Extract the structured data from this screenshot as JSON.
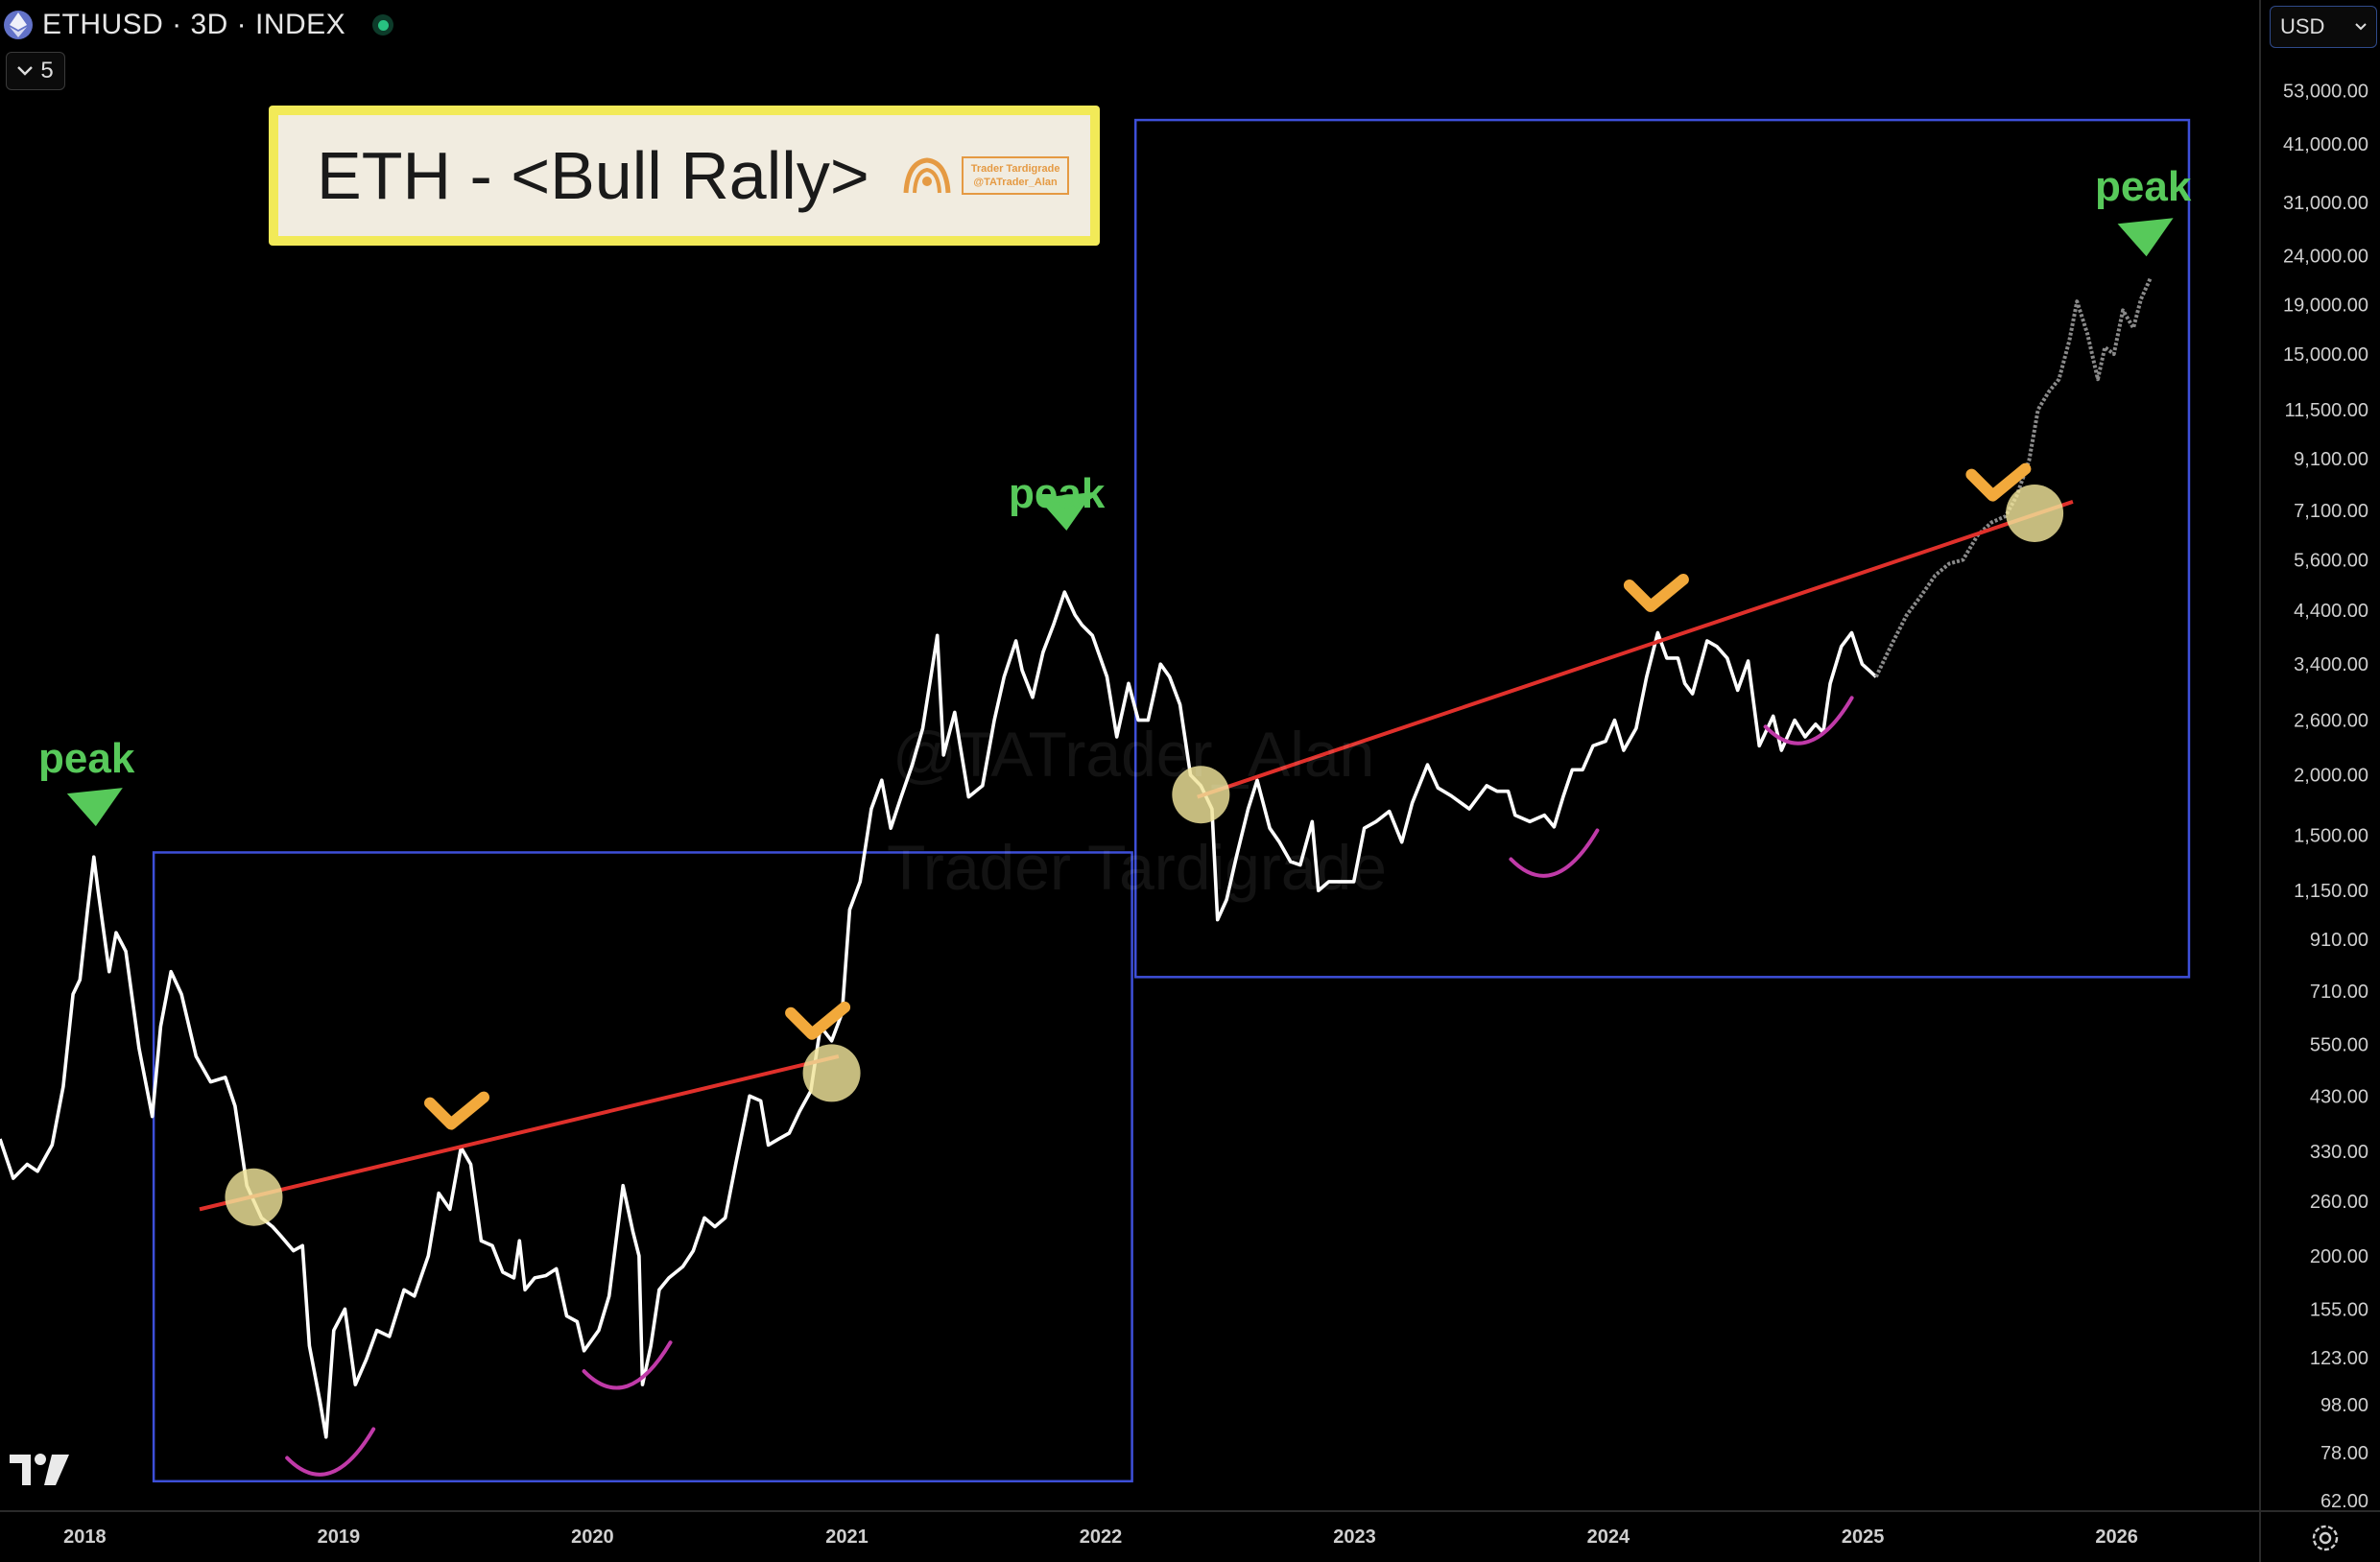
{
  "header": {
    "symbol": "ETHUSD · 3D · INDEX",
    "icon": "ethereum-icon",
    "status_icon": "market-status-dot",
    "collapse_count": "5"
  },
  "currency": {
    "label": "USD"
  },
  "banner": {
    "title": "ETH - <Bull Rally>",
    "badge_text_1": "Trader Tardigrade",
    "badge_text_2": "@TATrader_Alan"
  },
  "watermark": {
    "line1": "@TATrader_Alan",
    "line2": "Trader Tardigrade"
  },
  "logo": "tradingview-logo",
  "colors": {
    "background": "#000000",
    "price_line": "#ffffff",
    "projection": "#8a8a8a",
    "box": "#3d4fd8",
    "trendline": "#e0302b",
    "peak": "#57c95a",
    "check": "#f2a93b",
    "circle": "#f0e49a",
    "arc": "#c03aa8",
    "axis_text": "#cfcfcf"
  },
  "chart_data": {
    "type": "line",
    "title": "",
    "ylabel": "",
    "y_scale": "log",
    "ylim": [
      55,
      68000
    ],
    "xlim": [
      "2017-09-01",
      "2026-06-01"
    ],
    "x_ticks": [
      "2018",
      "2019",
      "2020",
      "2021",
      "2022",
      "2023",
      "2024",
      "2025",
      "2026"
    ],
    "y_ticks": [
      62,
      78,
      98,
      123,
      155,
      200,
      260,
      330,
      430,
      550,
      710,
      910,
      1150,
      1500,
      2000,
      2600,
      3400,
      4400,
      5600,
      7100,
      9100,
      11500,
      15000,
      19000,
      24000,
      31000,
      41000,
      53000
    ],
    "y_tick_labels": [
      "62.00",
      "78.00",
      "98.00",
      "123.00",
      "155.00",
      "200.00",
      "260.00",
      "330.00",
      "430.00",
      "550.00",
      "710.00",
      "910.00",
      "1,150.00",
      "1,500.00",
      "2,000.00",
      "2,600.00",
      "3,400.00",
      "4,400.00",
      "5,600.00",
      "7,100.00",
      "9,100.00",
      "11,500.00",
      "15,000.00",
      "19,000.00",
      "24,000.00",
      "31,000.00",
      "41,000.00",
      "53,000.00"
    ],
    "series": [
      {
        "style": "solid-white",
        "points": [
          [
            "2017-09-01",
            350
          ],
          [
            "2017-09-20",
            290
          ],
          [
            "2017-10-10",
            310
          ],
          [
            "2017-10-25",
            300
          ],
          [
            "2017-11-15",
            340
          ],
          [
            "2017-12-01",
            450
          ],
          [
            "2017-12-15",
            700
          ],
          [
            "2017-12-25",
            750
          ],
          [
            "2018-01-05",
            1050
          ],
          [
            "2018-01-14",
            1350
          ],
          [
            "2018-01-20",
            1150
          ],
          [
            "2018-02-05",
            780
          ],
          [
            "2018-02-15",
            940
          ],
          [
            "2018-03-01",
            860
          ],
          [
            "2018-03-20",
            540
          ],
          [
            "2018-04-08",
            390
          ],
          [
            "2018-04-20",
            600
          ],
          [
            "2018-05-05",
            780
          ],
          [
            "2018-05-20",
            700
          ],
          [
            "2018-06-10",
            520
          ],
          [
            "2018-07-01",
            460
          ],
          [
            "2018-07-22",
            470
          ],
          [
            "2018-08-05",
            410
          ],
          [
            "2018-08-22",
            280
          ],
          [
            "2018-09-12",
            240
          ],
          [
            "2018-09-28",
            230
          ],
          [
            "2018-10-10",
            220
          ],
          [
            "2018-10-28",
            205
          ],
          [
            "2018-11-10",
            210
          ],
          [
            "2018-11-20",
            130
          ],
          [
            "2018-12-05",
            100
          ],
          [
            "2018-12-14",
            84
          ],
          [
            "2018-12-25",
            140
          ],
          [
            "2019-01-10",
            155
          ],
          [
            "2019-01-25",
            108
          ],
          [
            "2019-02-10",
            122
          ],
          [
            "2019-02-25",
            140
          ],
          [
            "2019-03-15",
            136
          ],
          [
            "2019-04-05",
            170
          ],
          [
            "2019-04-20",
            165
          ],
          [
            "2019-05-10",
            200
          ],
          [
            "2019-05-25",
            270
          ],
          [
            "2019-06-10",
            250
          ],
          [
            "2019-06-26",
            336
          ],
          [
            "2019-07-10",
            310
          ],
          [
            "2019-07-25",
            215
          ],
          [
            "2019-08-10",
            210
          ],
          [
            "2019-08-25",
            185
          ],
          [
            "2019-09-10",
            180
          ],
          [
            "2019-09-18",
            215
          ],
          [
            "2019-09-26",
            170
          ],
          [
            "2019-10-10",
            180
          ],
          [
            "2019-10-26",
            182
          ],
          [
            "2019-11-10",
            188
          ],
          [
            "2019-11-25",
            150
          ],
          [
            "2019-12-10",
            146
          ],
          [
            "2019-12-20",
            127
          ],
          [
            "2020-01-10",
            140
          ],
          [
            "2020-01-25",
            165
          ],
          [
            "2020-02-14",
            280
          ],
          [
            "2020-02-28",
            225
          ],
          [
            "2020-03-08",
            200
          ],
          [
            "2020-03-13",
            108
          ],
          [
            "2020-03-25",
            130
          ],
          [
            "2020-04-06",
            170
          ],
          [
            "2020-04-20",
            180
          ],
          [
            "2020-05-10",
            190
          ],
          [
            "2020-05-25",
            205
          ],
          [
            "2020-06-10",
            240
          ],
          [
            "2020-06-25",
            230
          ],
          [
            "2020-07-10",
            240
          ],
          [
            "2020-07-25",
            310
          ],
          [
            "2020-08-14",
            430
          ],
          [
            "2020-08-30",
            420
          ],
          [
            "2020-09-10",
            340
          ],
          [
            "2020-09-25",
            350
          ],
          [
            "2020-10-10",
            360
          ],
          [
            "2020-10-25",
            400
          ],
          [
            "2020-11-10",
            440
          ],
          [
            "2020-11-24",
            600
          ],
          [
            "2020-12-10",
            560
          ],
          [
            "2020-12-25",
            640
          ],
          [
            "2021-01-05",
            1050
          ],
          [
            "2021-01-20",
            1200
          ],
          [
            "2021-02-05",
            1700
          ],
          [
            "2021-02-20",
            1950
          ],
          [
            "2021-03-05",
            1550
          ],
          [
            "2021-03-20",
            1800
          ],
          [
            "2021-04-05",
            2100
          ],
          [
            "2021-04-20",
            2500
          ],
          [
            "2021-05-11",
            3900
          ],
          [
            "2021-05-20",
            2200
          ],
          [
            "2021-06-05",
            2700
          ],
          [
            "2021-06-25",
            1800
          ],
          [
            "2021-07-15",
            1900
          ],
          [
            "2021-08-01",
            2600
          ],
          [
            "2021-08-15",
            3200
          ],
          [
            "2021-09-01",
            3800
          ],
          [
            "2021-09-10",
            3300
          ],
          [
            "2021-09-25",
            2900
          ],
          [
            "2021-10-10",
            3600
          ],
          [
            "2021-10-25",
            4100
          ],
          [
            "2021-11-10",
            4800
          ],
          [
            "2021-11-25",
            4300
          ],
          [
            "2021-12-05",
            4100
          ],
          [
            "2021-12-20",
            3900
          ],
          [
            "2022-01-10",
            3200
          ],
          [
            "2022-01-24",
            2400
          ],
          [
            "2022-02-10",
            3100
          ],
          [
            "2022-02-24",
            2600
          ],
          [
            "2022-03-10",
            2600
          ],
          [
            "2022-03-28",
            3400
          ],
          [
            "2022-04-10",
            3200
          ],
          [
            "2022-04-25",
            2800
          ],
          [
            "2022-05-10",
            2000
          ],
          [
            "2022-05-25",
            1900
          ],
          [
            "2022-06-10",
            1700
          ],
          [
            "2022-06-18",
            1000
          ],
          [
            "2022-07-01",
            1100
          ],
          [
            "2022-07-15",
            1350
          ],
          [
            "2022-08-01",
            1700
          ],
          [
            "2022-08-14",
            1950
          ],
          [
            "2022-09-01",
            1550
          ],
          [
            "2022-09-15",
            1450
          ],
          [
            "2022-10-01",
            1320
          ],
          [
            "2022-10-15",
            1300
          ],
          [
            "2022-11-01",
            1600
          ],
          [
            "2022-11-10",
            1150
          ],
          [
            "2022-11-25",
            1200
          ],
          [
            "2022-12-15",
            1200
          ],
          [
            "2022-12-31",
            1200
          ],
          [
            "2023-01-15",
            1550
          ],
          [
            "2023-02-01",
            1600
          ],
          [
            "2023-02-20",
            1680
          ],
          [
            "2023-03-10",
            1450
          ],
          [
            "2023-03-25",
            1750
          ],
          [
            "2023-04-16",
            2100
          ],
          [
            "2023-05-01",
            1880
          ],
          [
            "2023-05-20",
            1810
          ],
          [
            "2023-06-15",
            1700
          ],
          [
            "2023-07-10",
            1900
          ],
          [
            "2023-07-25",
            1850
          ],
          [
            "2023-08-10",
            1850
          ],
          [
            "2023-08-20",
            1650
          ],
          [
            "2023-09-10",
            1600
          ],
          [
            "2023-10-01",
            1650
          ],
          [
            "2023-10-15",
            1560
          ],
          [
            "2023-10-28",
            1800
          ],
          [
            "2023-11-10",
            2050
          ],
          [
            "2023-11-25",
            2050
          ],
          [
            "2023-12-10",
            2300
          ],
          [
            "2023-12-28",
            2350
          ],
          [
            "2024-01-10",
            2600
          ],
          [
            "2024-01-23",
            2250
          ],
          [
            "2024-02-10",
            2500
          ],
          [
            "2024-02-25",
            3200
          ],
          [
            "2024-03-12",
            3950
          ],
          [
            "2024-03-25",
            3500
          ],
          [
            "2024-04-10",
            3500
          ],
          [
            "2024-04-20",
            3100
          ],
          [
            "2024-05-01",
            2950
          ],
          [
            "2024-05-22",
            3800
          ],
          [
            "2024-06-05",
            3700
          ],
          [
            "2024-06-20",
            3500
          ],
          [
            "2024-07-05",
            3000
          ],
          [
            "2024-07-20",
            3450
          ],
          [
            "2024-08-05",
            2300
          ],
          [
            "2024-08-25",
            2650
          ],
          [
            "2024-09-06",
            2250
          ],
          [
            "2024-09-25",
            2600
          ],
          [
            "2024-10-10",
            2400
          ],
          [
            "2024-10-25",
            2550
          ],
          [
            "2024-11-05",
            2450
          ],
          [
            "2024-11-15",
            3100
          ],
          [
            "2024-12-01",
            3700
          ],
          [
            "2024-12-16",
            3950
          ],
          [
            "2024-12-31",
            3400
          ],
          [
            "2025-01-10",
            3300
          ],
          [
            "2025-01-20",
            3200
          ]
        ]
      },
      {
        "style": "dotted-grey-projection",
        "points": [
          [
            "2025-01-20",
            3200
          ],
          [
            "2025-02-10",
            3700
          ],
          [
            "2025-03-05",
            4300
          ],
          [
            "2025-03-25",
            4700
          ],
          [
            "2025-04-15",
            5200
          ],
          [
            "2025-05-05",
            5500
          ],
          [
            "2025-05-25",
            5600
          ],
          [
            "2025-06-15",
            6300
          ],
          [
            "2025-07-05",
            6700
          ],
          [
            "2025-07-25",
            6900
          ],
          [
            "2025-08-10",
            7600
          ],
          [
            "2025-08-28",
            9000
          ],
          [
            "2025-09-10",
            11500
          ],
          [
            "2025-09-25",
            12500
          ],
          [
            "2025-10-10",
            13300
          ],
          [
            "2025-10-25",
            16000
          ],
          [
            "2025-11-05",
            19300
          ],
          [
            "2025-11-20",
            16500
          ],
          [
            "2025-12-05",
            13300
          ],
          [
            "2025-12-15",
            15500
          ],
          [
            "2025-12-28",
            15000
          ],
          [
            "2026-01-10",
            18500
          ],
          [
            "2026-01-25",
            17000
          ],
          [
            "2026-02-05",
            19500
          ],
          [
            "2026-02-18",
            21500
          ]
        ]
      }
    ],
    "boxes": [
      {
        "x0": "2018-04-10",
        "x1": "2022-02-15",
        "y0": 68,
        "y1": 1380
      },
      {
        "x0": "2022-02-20",
        "x1": "2026-04-15",
        "y0": 760,
        "y1": 46000
      }
    ],
    "trendlines": [
      {
        "from": [
          "2018-06-15",
          250
        ],
        "to": [
          "2020-12-20",
          520
        ]
      },
      {
        "from": [
          "2022-05-20",
          1800
        ],
        "to": [
          "2025-10-30",
          7400
        ]
      }
    ],
    "circles": [
      [
        "2018-09-01",
        265
      ],
      [
        "2020-12-10",
        480
      ],
      [
        "2022-05-25",
        1820
      ],
      [
        "2025-09-05",
        7000
      ]
    ],
    "checkmarks": [
      [
        "2019-06-20",
        390
      ],
      [
        "2020-11-20",
        600
      ],
      [
        "2024-03-10",
        4650
      ],
      [
        "2025-07-15",
        7900
      ]
    ],
    "arcs": [
      [
        "2018-12-20",
        70
      ],
      [
        "2020-02-20",
        106
      ],
      [
        "2023-10-15",
        1230
      ],
      [
        "2024-10-15",
        2320
      ]
    ],
    "annotations": [
      {
        "text": "peak",
        "x": "2018-01-14",
        "y": 2550,
        "marker_y": 1700
      },
      {
        "text": "peak",
        "x": "2021-11-10",
        "y": 10700,
        "marker_y": 7000
      },
      {
        "text": "peak",
        "x": "2026-02-10",
        "y": 40000,
        "marker_y": 26000
      }
    ]
  }
}
